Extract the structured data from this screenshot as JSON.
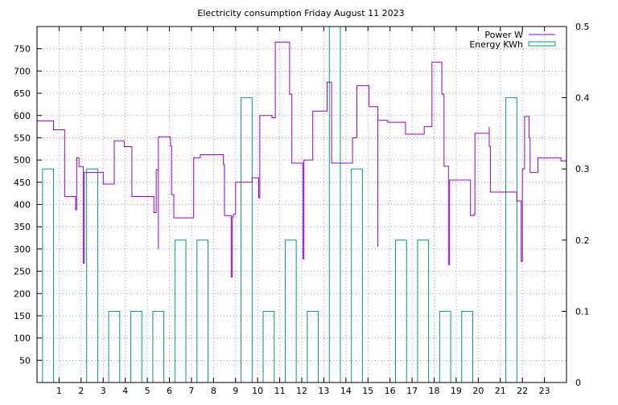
{
  "chart_data": {
    "type": "line",
    "title": "Electricity consumption Friday August 11 2023",
    "xlabel": "",
    "ylabel": "",
    "x_ticks": [
      1,
      2,
      3,
      4,
      5,
      6,
      7,
      8,
      9,
      10,
      11,
      12,
      13,
      14,
      15,
      16,
      17,
      18,
      19,
      20,
      21,
      22,
      23
    ],
    "xlim": [
      0,
      24
    ],
    "ylim_left": [
      0,
      800
    ],
    "ylim_right": [
      0,
      0.5
    ],
    "y_ticks_left": [
      50,
      100,
      150,
      200,
      250,
      300,
      350,
      400,
      450,
      500,
      550,
      600,
      650,
      700,
      750
    ],
    "y_ticks_right": [
      0,
      0.1,
      0.2,
      0.3,
      0.4,
      0.5
    ],
    "grid": true,
    "legend_position": "top-right",
    "series": [
      {
        "name": "Power W",
        "color": "#9400d3",
        "axis": "left",
        "style": "steps",
        "points": [
          [
            0,
            588
          ],
          [
            0.75,
            568
          ],
          [
            1.25,
            568
          ],
          [
            1.25,
            418
          ],
          [
            1.75,
            418
          ],
          [
            1.75,
            388
          ],
          [
            1.8,
            505
          ],
          [
            1.9,
            485
          ],
          [
            2.0,
            485
          ],
          [
            2.1,
            268
          ],
          [
            2.15,
            472
          ],
          [
            2.5,
            472
          ],
          [
            2.95,
            472
          ],
          [
            3.0,
            446
          ],
          [
            3.5,
            446
          ],
          [
            3.5,
            543
          ],
          [
            3.95,
            543
          ],
          [
            3.95,
            530
          ],
          [
            4.2,
            530
          ],
          [
            4.3,
            478
          ],
          [
            4.3,
            418
          ],
          [
            5.0,
            418
          ],
          [
            5.3,
            418
          ],
          [
            5.3,
            382
          ],
          [
            5.4,
            478
          ],
          [
            5.5,
            515
          ],
          [
            5.5,
            300
          ],
          [
            5.5,
            552
          ],
          [
            6.0,
            552
          ],
          [
            6.05,
            532
          ],
          [
            6.1,
            422
          ],
          [
            6.2,
            422
          ],
          [
            6.2,
            370
          ],
          [
            7.0,
            370
          ],
          [
            7.1,
            370
          ],
          [
            7.1,
            505
          ],
          [
            7.4,
            505
          ],
          [
            7.4,
            512
          ],
          [
            8.4,
            512
          ],
          [
            8.45,
            490
          ],
          [
            8.5,
            375
          ],
          [
            8.8,
            375
          ],
          [
            8.8,
            237
          ],
          [
            8.85,
            372
          ],
          [
            8.9,
            378
          ],
          [
            9.0,
            450
          ],
          [
            9.7,
            450
          ],
          [
            9.75,
            460
          ],
          [
            10.05,
            460
          ],
          [
            10.05,
            415
          ],
          [
            10.1,
            600
          ],
          [
            10.65,
            600
          ],
          [
            10.65,
            595
          ],
          [
            10.8,
            595
          ],
          [
            10.8,
            765
          ],
          [
            11.4,
            765
          ],
          [
            11.45,
            648
          ],
          [
            11.5,
            648
          ],
          [
            11.55,
            493
          ],
          [
            12.0,
            493
          ],
          [
            12.05,
            278
          ],
          [
            12.1,
            500
          ],
          [
            12.5,
            500
          ],
          [
            12.5,
            610
          ],
          [
            13.1,
            610
          ],
          [
            13.15,
            675
          ],
          [
            13.3,
            675
          ],
          [
            13.35,
            493
          ],
          [
            14.3,
            493
          ],
          [
            14.3,
            550
          ],
          [
            14.45,
            550
          ],
          [
            14.5,
            667
          ],
          [
            15.0,
            667
          ],
          [
            15.05,
            620
          ],
          [
            15.4,
            620
          ],
          [
            15.45,
            305
          ],
          [
            15.45,
            589
          ],
          [
            15.9,
            589
          ],
          [
            15.9,
            585
          ],
          [
            16.7,
            585
          ],
          [
            16.7,
            558
          ],
          [
            17.55,
            558
          ],
          [
            17.55,
            575
          ],
          [
            17.9,
            575
          ],
          [
            17.9,
            720
          ],
          [
            18.3,
            720
          ],
          [
            18.35,
            648
          ],
          [
            18.4,
            648
          ],
          [
            18.45,
            486
          ],
          [
            18.6,
            486
          ],
          [
            18.65,
            265
          ],
          [
            18.7,
            455
          ],
          [
            19.6,
            455
          ],
          [
            19.65,
            375
          ],
          [
            19.75,
            375
          ],
          [
            19.8,
            378
          ],
          [
            19.85,
            560
          ],
          [
            20.45,
            560
          ],
          [
            20.5,
            575
          ],
          [
            20.5,
            530
          ],
          [
            20.55,
            428
          ],
          [
            21.7,
            428
          ],
          [
            21.75,
            408
          ],
          [
            21.9,
            408
          ],
          [
            21.95,
            272
          ],
          [
            22.0,
            480
          ],
          [
            22.05,
            480
          ],
          [
            22.1,
            598
          ],
          [
            22.25,
            598
          ],
          [
            22.3,
            550
          ],
          [
            22.35,
            472
          ],
          [
            22.7,
            472
          ],
          [
            22.7,
            505
          ],
          [
            23.7,
            505
          ],
          [
            23.75,
            498
          ],
          [
            24.0,
            498
          ]
        ]
      },
      {
        "name": "Energy KWh",
        "color": "#009e73",
        "axis": "right",
        "style": "bars",
        "bars": [
          {
            "x": 0.5,
            "y": 0.3
          },
          {
            "x": 2.5,
            "y": 0.3
          },
          {
            "x": 3.5,
            "y": 0.1
          },
          {
            "x": 4.5,
            "y": 0.1
          },
          {
            "x": 5.5,
            "y": 0.1
          },
          {
            "x": 6.5,
            "y": 0.2
          },
          {
            "x": 7.5,
            "y": 0.2
          },
          {
            "x": 9.5,
            "y": 0.4
          },
          {
            "x": 10.5,
            "y": 0.1
          },
          {
            "x": 11.5,
            "y": 0.2
          },
          {
            "x": 12.5,
            "y": 0.1
          },
          {
            "x": 13.5,
            "y": 0.5
          },
          {
            "x": 14.5,
            "y": 0.3
          },
          {
            "x": 16.5,
            "y": 0.2
          },
          {
            "x": 17.5,
            "y": 0.2
          },
          {
            "x": 18.5,
            "y": 0.1
          },
          {
            "x": 19.5,
            "y": 0.1
          },
          {
            "x": 21.5,
            "y": 0.4
          }
        ]
      }
    ]
  }
}
